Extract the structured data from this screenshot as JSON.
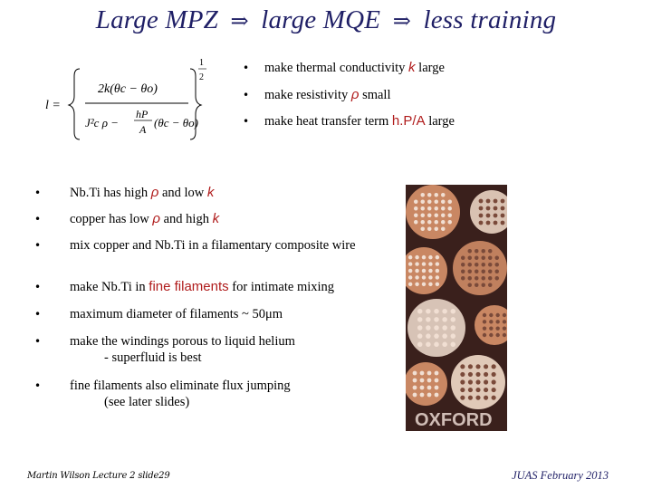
{
  "title": {
    "part1": "Large MPZ",
    "arrow": "⇒",
    "part2": "large MQE",
    "part3": "less training"
  },
  "formula": {
    "lhs": "l =",
    "num": "2k(θc − θo)",
    "den_a": "J²c ρ − ",
    "den_frac_top": "hP",
    "den_frac_bot": "A",
    "den_b": "(θc − θo)",
    "exp_top": "1",
    "exp_bot": "2"
  },
  "top_bullets": [
    {
      "pre": "make thermal conductivity ",
      "sym": "k",
      "post": " large"
    },
    {
      "pre": "make resistivity ",
      "sym": "ρ",
      "post": " small"
    },
    {
      "pre": "make heat transfer term ",
      "sym": "h.P/A",
      "post": " large"
    }
  ],
  "bullets": {
    "b1": {
      "pre": "Nb.Ti has  high ",
      "sym1": "ρ",
      "mid": " and low ",
      "sym2": "k"
    },
    "b2": {
      "pre": "copper has low ",
      "sym1": "ρ",
      "mid": " and high ",
      "sym2": "k"
    },
    "b3": {
      "text": "mix copper and Nb.Ti in a filamentary composite wire"
    },
    "b4": {
      "pre": "make Nb.Ti in ",
      "hl": "fine filaments",
      "post": " for intimate mixing"
    },
    "b5": {
      "text": "maximum diameter of filaments ~ 50μm"
    },
    "b6": {
      "line1": "make the windings porous to liquid helium",
      "line2": "- superfluid is best"
    },
    "b7": {
      "line1": "fine filaments also eliminate flux jumping",
      "line2": "(see later slides)"
    }
  },
  "photo": {
    "logo_text": "OXFORD"
  },
  "colors": {
    "title": "#1f1f66",
    "highlight": "#b01c1c",
    "photo_bg": "#3a201c",
    "wire": "#c98763"
  },
  "footer": {
    "left": "Martin Wilson Lecture 2 slide29",
    "right": "JUAS February 2013"
  }
}
